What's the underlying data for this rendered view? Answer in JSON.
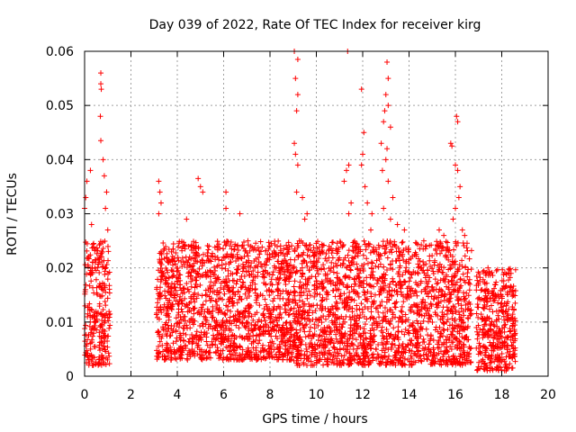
{
  "chart_data": {
    "type": "scatter",
    "title": "Day 039 of 2022, Rate Of TEC Index for receiver kirg",
    "xlabel": "GPS time / hours",
    "ylabel": "ROTI / TECUs",
    "xlim": [
      0,
      20
    ],
    "ylim": [
      0,
      0.06
    ],
    "x_ticks": [
      0,
      2,
      4,
      6,
      8,
      10,
      12,
      14,
      16,
      18,
      20
    ],
    "y_ticks": [
      0,
      0.01,
      0.02,
      0.03,
      0.04,
      0.05,
      0.06
    ],
    "x_tick_labels": [
      "0",
      "2",
      "4",
      "6",
      "8",
      "10",
      "12",
      "14",
      "16",
      "18",
      "20"
    ],
    "y_tick_labels": [
      "0",
      "0.01",
      "0.02",
      "0.03",
      "0.04",
      "0.05",
      "0.06"
    ],
    "grid": true,
    "marker": "plus",
    "color": "#ff0000",
    "data_segments": [
      {
        "x_range": [
          0.0,
          1.1
        ],
        "y_base": [
          0.002,
          0.025
        ]
      },
      {
        "x_range": [
          3.1,
          9.0
        ],
        "y_base": [
          0.003,
          0.025
        ]
      },
      {
        "x_range": [
          9.0,
          16.7
        ],
        "y_base": [
          0.002,
          0.025
        ]
      },
      {
        "x_range": [
          16.9,
          18.6
        ],
        "y_base": [
          0.001,
          0.02
        ]
      }
    ],
    "notable_points": [
      {
        "x": 0.0,
        "y": 0.031
      },
      {
        "x": 0.05,
        "y": 0.033
      },
      {
        "x": 0.1,
        "y": 0.036
      },
      {
        "x": 0.25,
        "y": 0.038
      },
      {
        "x": 0.3,
        "y": 0.028
      },
      {
        "x": 0.7,
        "y": 0.056
      },
      {
        "x": 0.7,
        "y": 0.054
      },
      {
        "x": 0.72,
        "y": 0.053
      },
      {
        "x": 0.68,
        "y": 0.048
      },
      {
        "x": 0.7,
        "y": 0.0435
      },
      {
        "x": 0.8,
        "y": 0.04
      },
      {
        "x": 0.85,
        "y": 0.037
      },
      {
        "x": 0.95,
        "y": 0.034
      },
      {
        "x": 0.9,
        "y": 0.031
      },
      {
        "x": 1.0,
        "y": 0.027
      },
      {
        "x": 3.2,
        "y": 0.036
      },
      {
        "x": 3.25,
        "y": 0.034
      },
      {
        "x": 3.3,
        "y": 0.032
      },
      {
        "x": 3.2,
        "y": 0.03
      },
      {
        "x": 4.4,
        "y": 0.029
      },
      {
        "x": 4.9,
        "y": 0.0365
      },
      {
        "x": 5.0,
        "y": 0.035
      },
      {
        "x": 5.1,
        "y": 0.034
      },
      {
        "x": 6.1,
        "y": 0.034
      },
      {
        "x": 6.1,
        "y": 0.031
      },
      {
        "x": 6.7,
        "y": 0.03
      },
      {
        "x": 9.05,
        "y": 0.06
      },
      {
        "x": 9.2,
        "y": 0.0585
      },
      {
        "x": 9.1,
        "y": 0.055
      },
      {
        "x": 9.2,
        "y": 0.052
      },
      {
        "x": 9.15,
        "y": 0.049
      },
      {
        "x": 9.05,
        "y": 0.043
      },
      {
        "x": 9.1,
        "y": 0.041
      },
      {
        "x": 9.2,
        "y": 0.039
      },
      {
        "x": 9.15,
        "y": 0.034
      },
      {
        "x": 9.4,
        "y": 0.033
      },
      {
        "x": 9.6,
        "y": 0.03
      },
      {
        "x": 9.5,
        "y": 0.029
      },
      {
        "x": 11.35,
        "y": 0.06
      },
      {
        "x": 11.3,
        "y": 0.038
      },
      {
        "x": 11.4,
        "y": 0.039
      },
      {
        "x": 11.2,
        "y": 0.036
      },
      {
        "x": 11.5,
        "y": 0.032
      },
      {
        "x": 11.4,
        "y": 0.03
      },
      {
        "x": 11.95,
        "y": 0.053
      },
      {
        "x": 12.05,
        "y": 0.045
      },
      {
        "x": 12.0,
        "y": 0.041
      },
      {
        "x": 11.95,
        "y": 0.039
      },
      {
        "x": 12.1,
        "y": 0.035
      },
      {
        "x": 12.2,
        "y": 0.032
      },
      {
        "x": 12.4,
        "y": 0.03
      },
      {
        "x": 12.35,
        "y": 0.027
      },
      {
        "x": 13.05,
        "y": 0.058
      },
      {
        "x": 13.1,
        "y": 0.055
      },
      {
        "x": 13.0,
        "y": 0.052
      },
      {
        "x": 13.1,
        "y": 0.05
      },
      {
        "x": 12.95,
        "y": 0.049
      },
      {
        "x": 12.9,
        "y": 0.047
      },
      {
        "x": 13.2,
        "y": 0.046
      },
      {
        "x": 12.8,
        "y": 0.043
      },
      {
        "x": 13.05,
        "y": 0.042
      },
      {
        "x": 13.0,
        "y": 0.04
      },
      {
        "x": 12.85,
        "y": 0.038
      },
      {
        "x": 13.1,
        "y": 0.036
      },
      {
        "x": 13.3,
        "y": 0.033
      },
      {
        "x": 12.9,
        "y": 0.031
      },
      {
        "x": 13.2,
        "y": 0.029
      },
      {
        "x": 13.5,
        "y": 0.028
      },
      {
        "x": 13.8,
        "y": 0.027
      },
      {
        "x": 15.3,
        "y": 0.027
      },
      {
        "x": 15.5,
        "y": 0.026
      },
      {
        "x": 15.8,
        "y": 0.043
      },
      {
        "x": 15.85,
        "y": 0.0425
      },
      {
        "x": 16.05,
        "y": 0.048
      },
      {
        "x": 16.1,
        "y": 0.047
      },
      {
        "x": 16.0,
        "y": 0.039
      },
      {
        "x": 16.1,
        "y": 0.038
      },
      {
        "x": 16.2,
        "y": 0.035
      },
      {
        "x": 16.15,
        "y": 0.033
      },
      {
        "x": 16.0,
        "y": 0.031
      },
      {
        "x": 15.9,
        "y": 0.029
      },
      {
        "x": 16.3,
        "y": 0.027
      },
      {
        "x": 16.4,
        "y": 0.026
      }
    ]
  }
}
